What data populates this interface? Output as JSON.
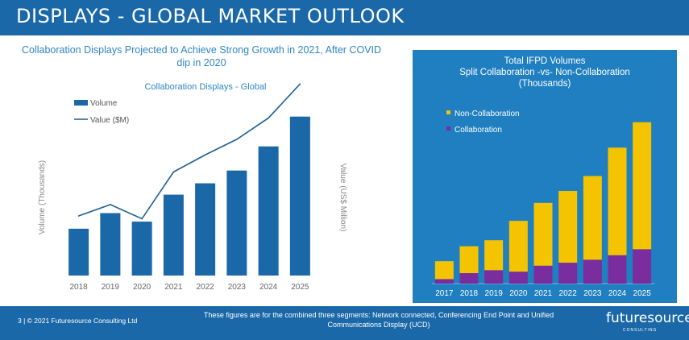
{
  "header": {
    "title": "DISPLAYS - GLOBAL MARKET OUTLOOK"
  },
  "subtitle": {
    "line1": "Collaboration Displays Projected to Achieve Strong Growth in 2021, After COVID",
    "line2": "dip in 2020"
  },
  "footer": {
    "copyright": "3  |  © 2021 Futuresource Consulting Ltd",
    "note_line1": "These figures are for the combined three segments: Network connected, Conferencing End Point and Unified",
    "note_line2": "Communications Display (UCD)",
    "logo": "futuresource",
    "logo_sub": "CONSULTING"
  },
  "right_panel": {
    "title_line1": "Total IFPD Volumes",
    "title_line2": "Split Collaboration -vs-  Non-Collaboration",
    "title_line3": "(Thousands)"
  },
  "colors": {
    "header": "#1a68a8",
    "bar_blue": "#1a68a8",
    "line": "#1e5f93",
    "panel": "#1f7fc0",
    "non_collab": "#f5c400",
    "collab": "#7a2d9e"
  },
  "chart_data": [
    {
      "type": "bar",
      "title": "Collaboration Displays - Global",
      "ylabel": "Volume (Thousands)",
      "y2label": "Value (US$ Million)",
      "categories": [
        "2018",
        "2019",
        "2020",
        "2021",
        "2022",
        "2023",
        "2024",
        "2025"
      ],
      "series": [
        {
          "name": "Volume",
          "type": "bar",
          "values": [
            33,
            44,
            38,
            57,
            65,
            74,
            91,
            112
          ]
        },
        {
          "name": "Value ($M)",
          "type": "line",
          "values": [
            42,
            50,
            40,
            73,
            85,
            96,
            111,
            135
          ]
        }
      ],
      "ylim": [
        0,
        130
      ],
      "legend": "top-left",
      "grid": false
    },
    {
      "type": "bar",
      "stacked": true,
      "title": "Total IFPD Volumes Split Collaboration -vs-  Non-Collaboration (Thousands)",
      "categories": [
        "2017",
        "2018",
        "2019",
        "2020",
        "2021",
        "2022",
        "2023",
        "2024",
        "2025"
      ],
      "series": [
        {
          "name": "Non-Collaboration",
          "values": [
            12,
            18,
            20,
            34,
            42,
            48,
            56,
            72,
            85
          ]
        },
        {
          "name": "Collaboration",
          "values": [
            3,
            7,
            9,
            8,
            12,
            14,
            16,
            19,
            23
          ]
        }
      ],
      "ylim": [
        0,
        110
      ],
      "legend": "top-left",
      "grid": false
    }
  ]
}
